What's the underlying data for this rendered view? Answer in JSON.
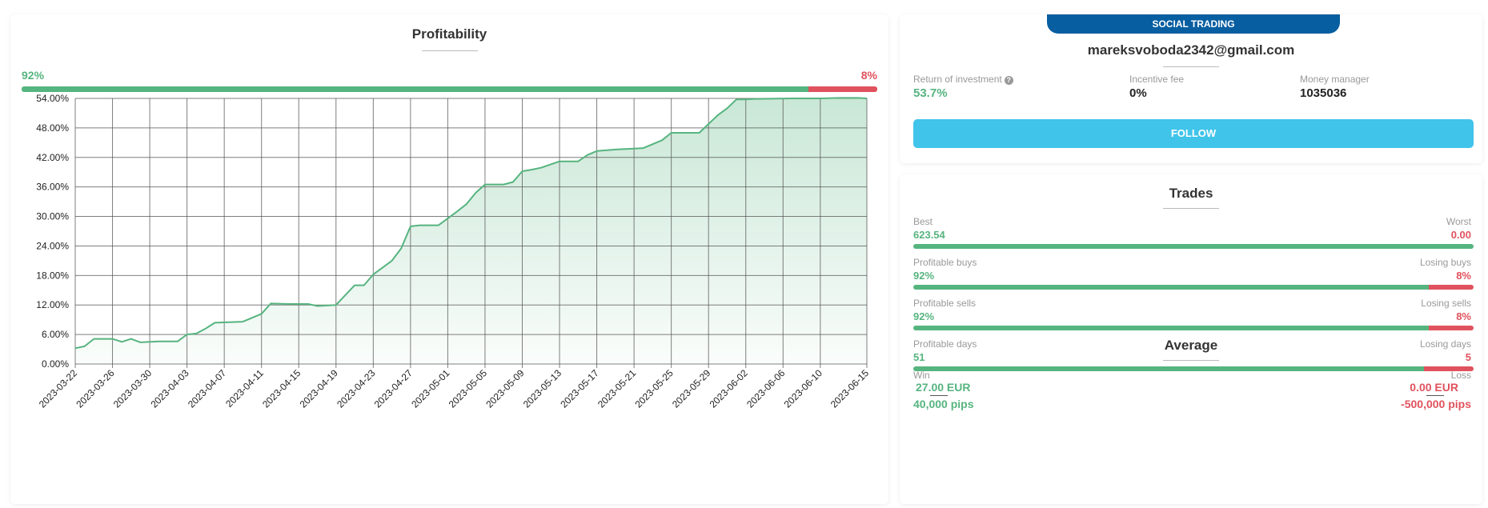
{
  "profitability": {
    "title": "Profitability",
    "profit_pct": "92%",
    "loss_pct": "8%",
    "profit_share": 0.92
  },
  "chart_data": {
    "type": "area",
    "title": "",
    "xlabel": "",
    "ylabel": "",
    "ylim": [
      0,
      54
    ],
    "y_ticks": [
      "0.00%",
      "6.00%",
      "12.00%",
      "18.00%",
      "24.00%",
      "30.00%",
      "36.00%",
      "42.00%",
      "48.00%",
      "54.00%"
    ],
    "x_ticks": [
      "2023-03-22",
      "2023-03-26",
      "2023-03-30",
      "2023-04-03",
      "2023-04-07",
      "2023-04-11",
      "2023-04-15",
      "2023-04-19",
      "2023-04-23",
      "2023-04-27",
      "2023-05-01",
      "2023-05-05",
      "2023-05-09",
      "2023-05-13",
      "2023-05-17",
      "2023-05-21",
      "2023-05-25",
      "2023-05-29",
      "2023-06-02",
      "2023-06-06",
      "2023-06-10",
      "2023-06-15"
    ],
    "grid": true,
    "line_color": "#56b47f",
    "series": [
      {
        "x": [
          "2023-03-22",
          "2023-03-23",
          "2023-03-24",
          "2023-03-26",
          "2023-03-27",
          "2023-03-28",
          "2023-03-29",
          "2023-03-31",
          "2023-04-02",
          "2023-04-03",
          "2023-04-04",
          "2023-04-05",
          "2023-04-06",
          "2023-04-09",
          "2023-04-11",
          "2023-04-12",
          "2023-04-14",
          "2023-04-16",
          "2023-04-17",
          "2023-04-19",
          "2023-04-21",
          "2023-04-22",
          "2023-04-23",
          "2023-04-25",
          "2023-04-26",
          "2023-04-27",
          "2023-04-28",
          "2023-04-30",
          "2023-05-02",
          "2023-05-03",
          "2023-05-04",
          "2023-05-05",
          "2023-05-07",
          "2023-05-08",
          "2023-05-09",
          "2023-05-10",
          "2023-05-11",
          "2023-05-13",
          "2023-05-15",
          "2023-05-16",
          "2023-05-17",
          "2023-05-19",
          "2023-05-21",
          "2023-05-22",
          "2023-05-23",
          "2023-05-24",
          "2023-05-25",
          "2023-05-28",
          "2023-05-29",
          "2023-05-30",
          "2023-05-31",
          "2023-06-01",
          "2023-06-02",
          "2023-06-03",
          "2023-06-07",
          "2023-06-10",
          "2023-06-12",
          "2023-06-14",
          "2023-06-15"
        ],
        "y": [
          3.2,
          3.6,
          5.1,
          5.1,
          4.5,
          5.1,
          4.4,
          4.6,
          4.6,
          6.0,
          6.2,
          7.2,
          8.4,
          8.6,
          10.2,
          12.3,
          12.2,
          12.2,
          11.8,
          12.0,
          16.0,
          16.0,
          18.2,
          21.0,
          23.5,
          28.0,
          28.2,
          28.2,
          31.0,
          32.5,
          34.8,
          36.5,
          36.5,
          37.0,
          39.2,
          39.5,
          39.9,
          41.2,
          41.2,
          42.5,
          43.3,
          43.6,
          43.8,
          43.9,
          44.7,
          45.5,
          47.0,
          47.0,
          48.8,
          50.6,
          52.0,
          53.8,
          53.8,
          53.9,
          54.0,
          54.0,
          54.1,
          54.1,
          54.0
        ]
      }
    ]
  },
  "social": {
    "tag": "SOCIAL TRADING",
    "email": "mareksvoboda2342@gmail.com",
    "roi_label": "Return of investment",
    "roi_value": "53.7%",
    "help_glyph": "?",
    "fee_label": "Incentive fee",
    "fee_value": "0%",
    "manager_label": "Money manager",
    "manager_value": "1035036",
    "follow_label": "FOLLOW"
  },
  "trades": {
    "title": "Trades",
    "rows": [
      {
        "left_label": "Best",
        "right_label": "Worst",
        "left_value": "623.54",
        "right_value": "0.00",
        "share": 1.0
      },
      {
        "left_label": "Profitable buys",
        "right_label": "Losing buys",
        "left_value": "92%",
        "right_value": "8%",
        "share": 0.92
      },
      {
        "left_label": "Profitable sells",
        "right_label": "Losing sells",
        "left_value": "92%",
        "right_value": "8%",
        "share": 0.92
      },
      {
        "left_label": "Profitable days",
        "right_label": "Losing days",
        "left_value": "51",
        "right_value": "5",
        "share": 0.911
      }
    ]
  },
  "average": {
    "title": "Average",
    "win_label": "Win",
    "loss_label": "Loss",
    "win_amount": "27.00 EUR",
    "loss_amount": "0.00 EUR",
    "win_pips": "40,000 pips",
    "loss_pips": "-500,000 pips"
  },
  "colors": {
    "profit": "#56b47f",
    "loss": "#e0525d",
    "tag": "#075ea1",
    "follow": "#41c4ea"
  }
}
